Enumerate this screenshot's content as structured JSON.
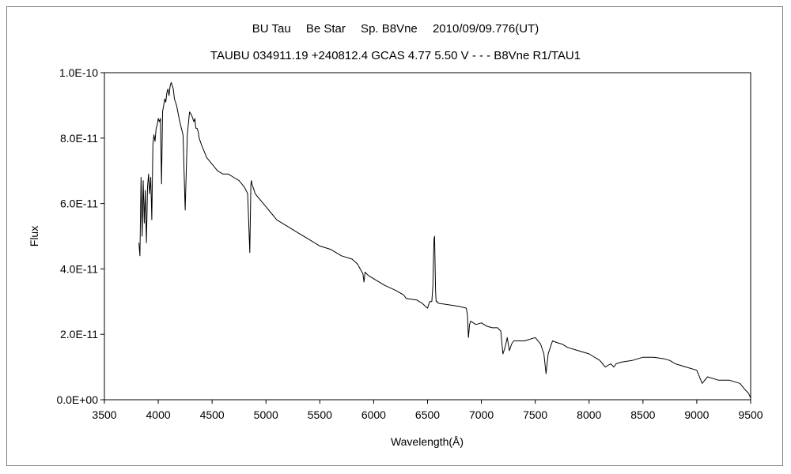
{
  "chart_data": {
    "type": "line",
    "title": "BU Tau　 Be Star　 Sp. B8Vne　 2010/09/09.776(UT)",
    "subtitle": "TAUBU 034911.19 +240812.4 GCAS 4.77 5.50 V - - - B8Vne R1/TAU1",
    "xlabel": "Wavelength(Å)",
    "ylabel": "Flux",
    "xlim": [
      3500,
      9500
    ],
    "ylim": [
      0,
      1e-10
    ],
    "xticks": [
      3500,
      4000,
      4500,
      5000,
      5500,
      6000,
      6500,
      7000,
      7500,
      8000,
      8500,
      9000,
      9500
    ],
    "xtick_labels": [
      "3500",
      "4000",
      "4500",
      "5000",
      "5500",
      "6000",
      "6500",
      "7000",
      "7500",
      "8000",
      "8500",
      "9000",
      "9500"
    ],
    "yticks": [
      0,
      2e-11,
      4e-11,
      6e-11,
      8e-11,
      1e-10
    ],
    "ytick_labels": [
      "0.0E+00",
      "2.0E-11",
      "4.0E-11",
      "6.0E-11",
      "8.0E-11",
      "1.0E-10"
    ],
    "grid": false,
    "series": [
      {
        "color": "#000000",
        "x": [
          3820,
          3830,
          3840,
          3850,
          3860,
          3870,
          3880,
          3890,
          3900,
          3910,
          3920,
          3930,
          3940,
          3950,
          3960,
          3970,
          3980,
          3990,
          4000,
          4010,
          4020,
          4030,
          4040,
          4050,
          4060,
          4070,
          4080,
          4090,
          4100,
          4110,
          4120,
          4130,
          4140,
          4150,
          4170,
          4200,
          4230,
          4250,
          4270,
          4290,
          4310,
          4320,
          4330,
          4340,
          4345,
          4350,
          4360,
          4370,
          4380,
          4400,
          4450,
          4500,
          4550,
          4600,
          4650,
          4700,
          4750,
          4800,
          4830,
          4850,
          4860,
          4865,
          4870,
          4880,
          4900,
          4950,
          5000,
          5050,
          5100,
          5200,
          5300,
          5400,
          5500,
          5600,
          5700,
          5800,
          5850,
          5900,
          5910,
          5920,
          5950,
          6000,
          6100,
          6200,
          6280,
          6300,
          6400,
          6450,
          6500,
          6520,
          6540,
          6550,
          6555,
          6560,
          6565,
          6570,
          6575,
          6580,
          6590,
          6600,
          6700,
          6800,
          6860,
          6870,
          6880,
          6890,
          6900,
          6950,
          7000,
          7050,
          7100,
          7150,
          7180,
          7200,
          7220,
          7240,
          7250,
          7260,
          7280,
          7300,
          7400,
          7500,
          7550,
          7580,
          7600,
          7620,
          7640,
          7650,
          7660,
          7700,
          7750,
          7800,
          7900,
          8000,
          8100,
          8150,
          8200,
          8230,
          8250,
          8300,
          8400,
          8500,
          8600,
          8700,
          8750,
          8800,
          8900,
          9000,
          9050,
          9100,
          9200,
          9300,
          9400,
          9450,
          9480,
          9500
        ],
        "y": [
          4.8e-11,
          4.4e-11,
          6.8e-11,
          5e-11,
          6.7e-11,
          5.4e-11,
          6.4e-11,
          4.8e-11,
          6.5e-11,
          6.9e-11,
          6.3e-11,
          6.8e-11,
          5.5e-11,
          7.8e-11,
          8.1e-11,
          7.9e-11,
          8.3e-11,
          8.4e-11,
          8.6e-11,
          8.5e-11,
          8.6e-11,
          6.6e-11,
          8.8e-11,
          9e-11,
          9.2e-11,
          9.1e-11,
          9.4e-11,
          9.5e-11,
          9.3e-11,
          9.6e-11,
          9.7e-11,
          9.6e-11,
          9.5e-11,
          9.2e-11,
          9e-11,
          8.5e-11,
          8.1e-11,
          5.8e-11,
          8.1e-11,
          8.8e-11,
          8.7e-11,
          8.6e-11,
          8.5e-11,
          8.6e-11,
          8.4e-11,
          8.3e-11,
          8.3e-11,
          8.2e-11,
          8e-11,
          7.8e-11,
          7.4e-11,
          7.2e-11,
          7e-11,
          6.9e-11,
          6.9e-11,
          6.8e-11,
          6.7e-11,
          6.5e-11,
          6.3e-11,
          4.5e-11,
          6.6e-11,
          6.7e-11,
          6.6e-11,
          6.5e-11,
          6.3e-11,
          6.1e-11,
          5.9e-11,
          5.7e-11,
          5.5e-11,
          5.3e-11,
          5.1e-11,
          4.9e-11,
          4.7e-11,
          4.6e-11,
          4.4e-11,
          4.3e-11,
          4.15e-11,
          3.85e-11,
          3.6e-11,
          3.9e-11,
          3.8e-11,
          3.7e-11,
          3.5e-11,
          3.35e-11,
          3.2e-11,
          3.1e-11,
          3.05e-11,
          2.95e-11,
          2.8e-11,
          3e-11,
          3e-11,
          3.5e-11,
          4.3e-11,
          4.9e-11,
          5e-11,
          4.2e-11,
          3.3e-11,
          3e-11,
          3e-11,
          2.95e-11,
          2.9e-11,
          2.85e-11,
          2.8e-11,
          2.6e-11,
          1.9e-11,
          2.3e-11,
          2.4e-11,
          2.3e-11,
          2.35e-11,
          2.25e-11,
          2.2e-11,
          2.2e-11,
          2.1e-11,
          1.4e-11,
          1.6e-11,
          1.9e-11,
          1.7e-11,
          1.5e-11,
          1.7e-11,
          1.8e-11,
          1.8e-11,
          1.9e-11,
          1.7e-11,
          1.4e-11,
          8e-12,
          1.4e-11,
          1.6e-11,
          1.7e-11,
          1.8e-11,
          1.75e-11,
          1.7e-11,
          1.6e-11,
          1.5e-11,
          1.4e-11,
          1.2e-11,
          1e-11,
          1.1e-11,
          1e-11,
          1.1e-11,
          1.15e-11,
          1.2e-11,
          1.3e-11,
          1.3e-11,
          1.25e-11,
          1.2e-11,
          1.1e-11,
          1e-11,
          9e-12,
          5e-12,
          7e-12,
          6e-12,
          6e-12,
          5e-12,
          3e-12,
          2e-12,
          5e-13
        ]
      }
    ]
  }
}
